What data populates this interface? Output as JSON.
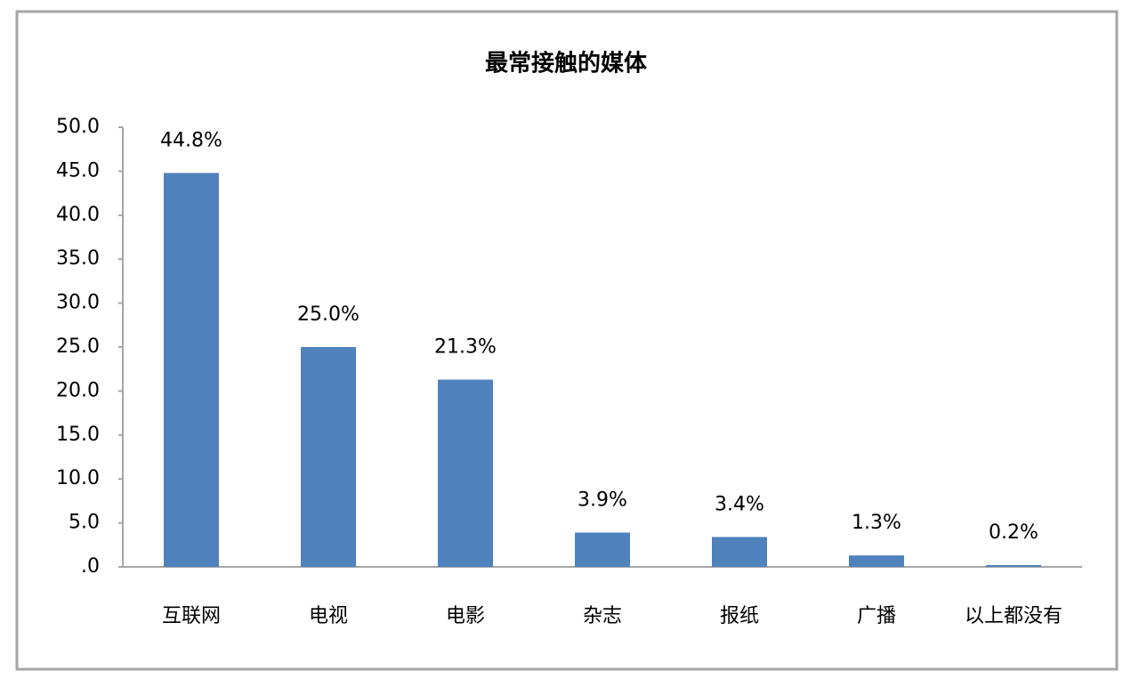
{
  "chart_data": {
    "type": "bar",
    "title": "最常接触的媒体",
    "categories": [
      "互联网",
      "电视",
      "电影",
      "杂志",
      "报纸",
      "广播",
      "以上都没有"
    ],
    "values": [
      44.8,
      25.0,
      21.3,
      3.9,
      3.4,
      1.3,
      0.2
    ],
    "value_labels": [
      "44.8%",
      "25.0%",
      "21.3%",
      "3.9%",
      "3.4%",
      "1.3%",
      "0.2%"
    ],
    "color": "#4f81bd",
    "ylim": [
      0,
      50
    ],
    "yticks": [
      {
        "value": 0,
        "label": ".0"
      },
      {
        "value": 5,
        "label": "5.0"
      },
      {
        "value": 10,
        "label": "10.0"
      },
      {
        "value": 15,
        "label": "15.0"
      },
      {
        "value": 20,
        "label": "20.0"
      },
      {
        "value": 25,
        "label": "25.0"
      },
      {
        "value": 30,
        "label": "30.0"
      },
      {
        "value": 35,
        "label": "35.0"
      },
      {
        "value": 40,
        "label": "40.0"
      },
      {
        "value": 45,
        "label": "45.0"
      },
      {
        "value": 50,
        "label": "50.0"
      }
    ],
    "grid": false
  }
}
